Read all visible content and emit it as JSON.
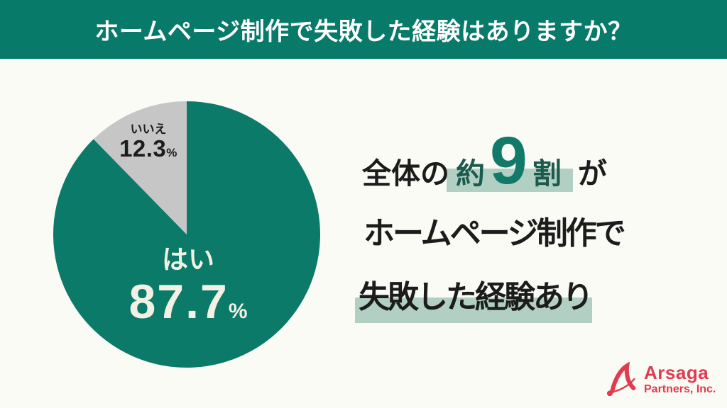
{
  "header": {
    "title": "ホームページ制作で失敗した経験はありますか？"
  },
  "chart_data": {
    "type": "pie",
    "title": "ホームページ制作で失敗した経験はありますか？",
    "unit": "%",
    "start_angle_deg": 0,
    "direction": "clockwise",
    "legend": "none",
    "slices": [
      {
        "label": "はい",
        "value": 87.7,
        "display": "87.7",
        "color": "#0b7a69",
        "text_color": "#f3f1e4"
      },
      {
        "label": "いいえ",
        "value": 12.3,
        "display": "12.3",
        "color": "#c6c6c6",
        "text_color": "#1c1c1c"
      }
    ]
  },
  "callout": {
    "line1_prefix": "全体の",
    "line1_hl_pre": "約",
    "line1_big": "9",
    "line1_hl_post": "割",
    "line1_suffix": "が",
    "line2": "ホームページ制作で",
    "line3": "失敗した経験あり"
  },
  "logo": {
    "name": "Arsaga",
    "sub": "Partners, Inc."
  },
  "colors": {
    "banner_bg": "#077a69",
    "background": "#fbfbf6",
    "pie_yes": "#0b7a69",
    "pie_no": "#c6c6c6",
    "highlight": "#b1d0c3",
    "big_digit": "#117a68",
    "accent_dark_teal": "#1d5a4e",
    "text_black": "#1c1c1c",
    "pie_label_cream": "#f3f1e4",
    "logo_red": "#e23a4e"
  }
}
